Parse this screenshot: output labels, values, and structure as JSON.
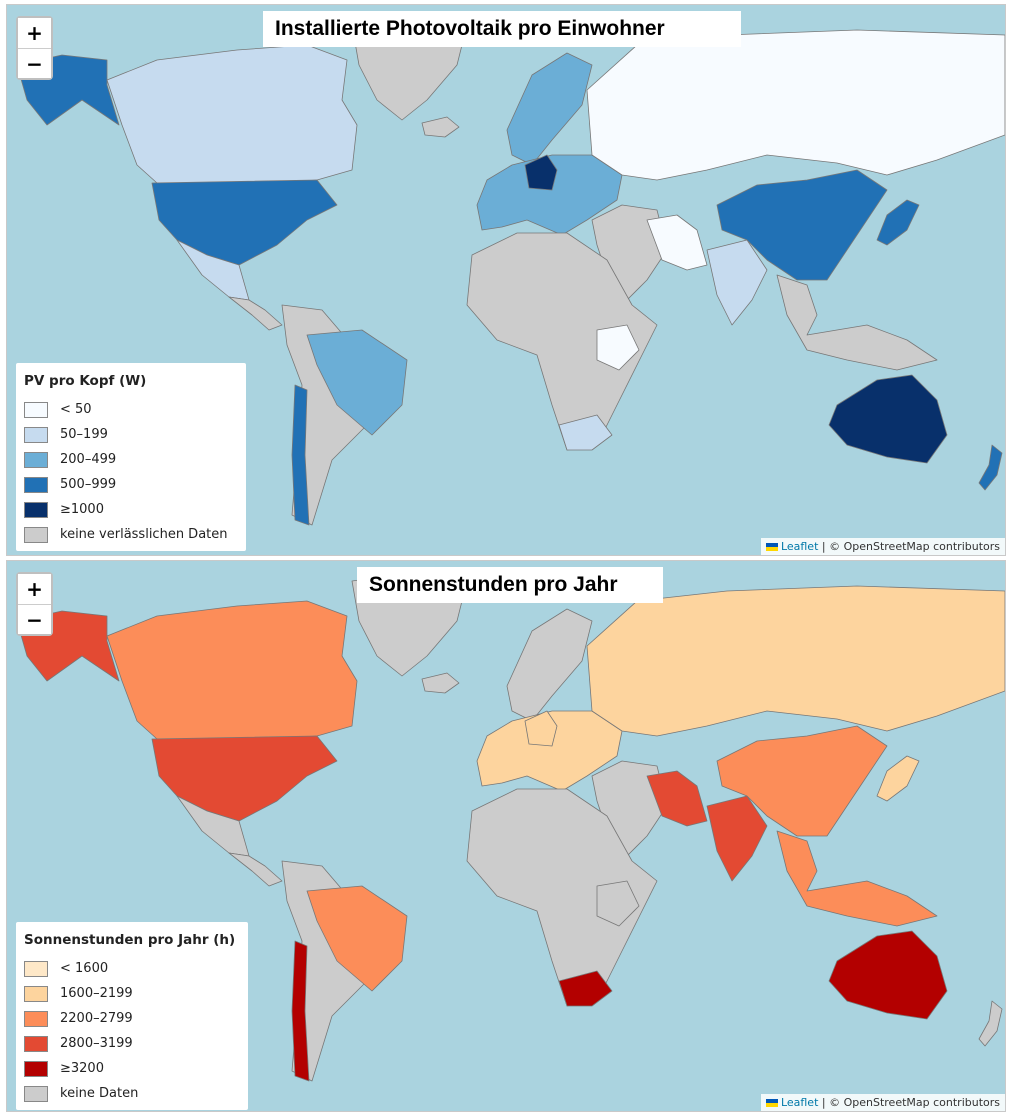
{
  "maps": [
    {
      "title": "Installierte Photovoltaik pro Einwohner",
      "zoom_in": "+",
      "zoom_out": "−",
      "legend_title": "PV pro Kopf (W)",
      "legend": [
        {
          "label": "< 50",
          "color": "#f7fbff"
        },
        {
          "label": "50–199",
          "color": "#c6dbef"
        },
        {
          "label": "200–499",
          "color": "#6baed6"
        },
        {
          "label": "500–999",
          "color": "#2171b5"
        },
        {
          "label": "≥1000",
          "color": "#08306b"
        },
        {
          "label": "keine verlässlichen Daten",
          "color": "#cccccc"
        }
      ],
      "regions": {
        "north_america": "#c6dbef",
        "alaska": "#2171b5",
        "usa": "#2171b5",
        "mexico": "#c6dbef",
        "central_america": "#cccccc",
        "south_america": "#cccccc",
        "brazil": "#6baed6",
        "chile": "#2171b5",
        "greenland": "#cccccc",
        "iceland": "#cccccc",
        "scandinavia": "#6baed6",
        "europe_main": "#6baed6",
        "germany": "#08306b",
        "russia": "#f7fbff",
        "middle_east": "#cccccc",
        "iran": "#f7fbff",
        "africa": "#cccccc",
        "ethiopia": "#f7fbff",
        "south_africa": "#c6dbef",
        "india": "#c6dbef",
        "china": "#2171b5",
        "japan": "#2171b5",
        "southeast_asia": "#cccccc",
        "australia": "#08306b",
        "new_zealand": "#2171b5"
      },
      "attribution": {
        "leaflet": "Leaflet",
        "separator": " | ",
        "credit": "© OpenStreetMap contributors"
      }
    },
    {
      "title": "Sonnenstunden pro Jahr",
      "zoom_in": "+",
      "zoom_out": "−",
      "legend_title": "Sonnenstunden pro Jahr (h)",
      "legend": [
        {
          "label": "< 1600",
          "color": "#fee8c8"
        },
        {
          "label": "1600–2199",
          "color": "#fdd49e"
        },
        {
          "label": "2200–2799",
          "color": "#fc8d59"
        },
        {
          "label": "2800–3199",
          "color": "#e34a33"
        },
        {
          "label": "≥3200",
          "color": "#b30000"
        },
        {
          "label": "keine Daten",
          "color": "#cccccc"
        }
      ],
      "regions": {
        "north_america": "#fc8d59",
        "alaska": "#e34a33",
        "usa": "#e34a33",
        "mexico": "#cccccc",
        "central_america": "#cccccc",
        "south_america": "#cccccc",
        "brazil": "#fc8d59",
        "chile": "#b30000",
        "greenland": "#cccccc",
        "iceland": "#cccccc",
        "scandinavia": "#cccccc",
        "europe_main": "#fdd49e",
        "germany": "#fdd49e",
        "russia": "#fdd49e",
        "middle_east": "#cccccc",
        "iran": "#e34a33",
        "africa": "#cccccc",
        "ethiopia": "#cccccc",
        "south_africa": "#b30000",
        "india": "#e34a33",
        "china": "#fc8d59",
        "japan": "#fdd49e",
        "southeast_asia": "#fc8d59",
        "australia": "#b30000",
        "new_zealand": "#cccccc"
      },
      "attribution": {
        "leaflet": "Leaflet",
        "separator": " | ",
        "credit": "© OpenStreetMap contributors"
      }
    }
  ]
}
